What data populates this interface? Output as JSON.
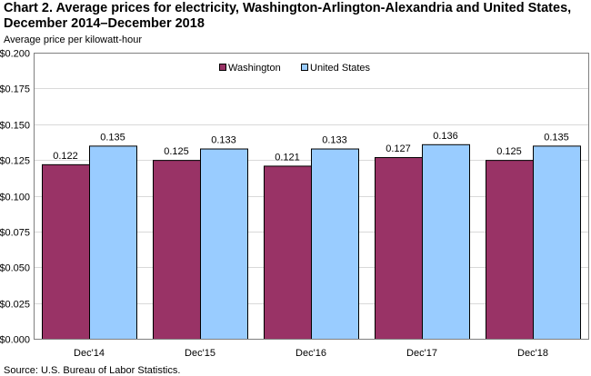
{
  "chart_data": {
    "type": "bar",
    "title_line1": "Chart 2. Average prices for electricity, Washington-Arlington-Alexandria and United States,",
    "title_line2": "December 2014–December 2018",
    "ylabel": "Average price per kilowatt-hour",
    "xlabel": "",
    "source": "Source: U.S. Bureau of Labor Statistics.",
    "categories": [
      "Dec'14",
      "Dec'15",
      "Dec'16",
      "Dec'17",
      "Dec'18"
    ],
    "series": [
      {
        "name": "Washington",
        "color": "#993366",
        "values": [
          0.122,
          0.125,
          0.121,
          0.127,
          0.125
        ]
      },
      {
        "name": "United States",
        "color": "#99ccff",
        "values": [
          0.135,
          0.133,
          0.133,
          0.136,
          0.135
        ]
      }
    ],
    "ylim": [
      0,
      0.2
    ],
    "yticks": [
      0,
      0.025,
      0.05,
      0.075,
      0.1,
      0.125,
      0.15,
      0.175,
      0.2
    ],
    "ytick_labels": [
      "$0.000",
      "$0.025",
      "$0.050",
      "$0.075",
      "$0.100",
      "$0.125",
      "$0.150",
      "$0.175",
      "$0.200"
    ],
    "grid": true,
    "legend_position": "top-center",
    "data_labels": true
  }
}
